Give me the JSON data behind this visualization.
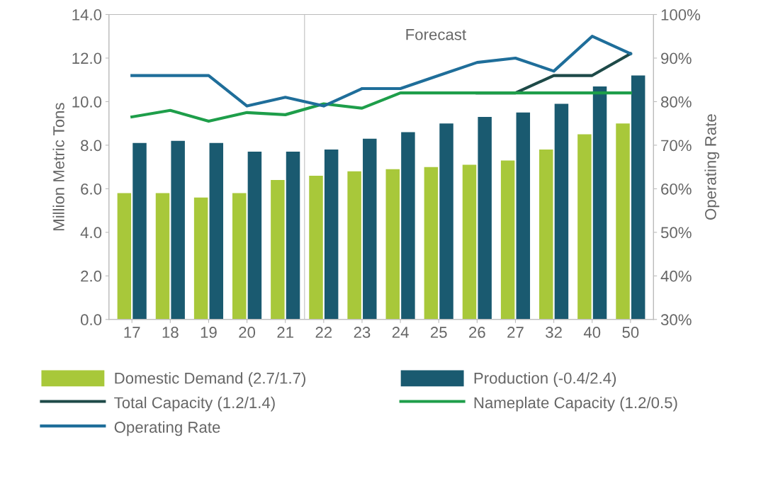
{
  "chart_data": {
    "type": "bar",
    "categories": [
      "17",
      "18",
      "19",
      "20",
      "21",
      "22",
      "23",
      "24",
      "25",
      "26",
      "27",
      "32",
      "40",
      "50"
    ],
    "ylabel": "Million Metric Tons",
    "y2label": "Operating Rate",
    "ylim": [
      0,
      14
    ],
    "yticks": [
      {
        "value": 0,
        "label": "0.0"
      },
      {
        "value": 2,
        "label": "2.0"
      },
      {
        "value": 4,
        "label": "4.0"
      },
      {
        "value": 6,
        "label": "6.0"
      },
      {
        "value": 8,
        "label": "8.0"
      },
      {
        "value": 10,
        "label": "10.0"
      },
      {
        "value": 12,
        "label": "12.0"
      },
      {
        "value": 14,
        "label": "14.0"
      }
    ],
    "y2lim": [
      30,
      100
    ],
    "y2ticks": [
      {
        "value": 30,
        "label": "30%"
      },
      {
        "value": 40,
        "label": "40%"
      },
      {
        "value": 50,
        "label": "50%"
      },
      {
        "value": 60,
        "label": "60%"
      },
      {
        "value": 70,
        "label": "70%"
      },
      {
        "value": 80,
        "label": "80%"
      },
      {
        "value": 90,
        "label": "90%"
      },
      {
        "value": 100,
        "label": "100%"
      }
    ],
    "series": [
      {
        "name": "Domestic Demand (2.7/1.7)",
        "color": "#a8c83a",
        "values": [
          5.8,
          5.8,
          5.6,
          5.8,
          6.4,
          6.6,
          6.8,
          6.9,
          7.0,
          7.1,
          7.3,
          7.8,
          8.5,
          9.0
        ]
      },
      {
        "name": "Production (-0.4/2.4)",
        "color": "#1a5a70",
        "values": [
          8.1,
          8.2,
          8.1,
          7.7,
          7.7,
          7.8,
          8.3,
          8.6,
          9.0,
          9.3,
          9.5,
          9.9,
          10.7,
          11.2
        ]
      },
      {
        "name": "Total Capacity (1.2/1.4)",
        "type": "line",
        "color": "#1e4a48",
        "values": [
          null,
          null,
          null,
          null,
          null,
          null,
          null,
          null,
          null,
          10.4,
          10.4,
          11.2,
          11.2,
          12.2
        ]
      },
      {
        "name": "Nameplate Capacity (1.2/0.5)",
        "type": "line",
        "color": "#1e9e4a",
        "values": [
          9.3,
          9.6,
          9.1,
          9.5,
          9.4,
          9.9,
          9.7,
          10.4,
          10.4,
          10.4,
          10.4,
          10.4,
          10.4,
          10.4
        ]
      },
      {
        "name": "Operating Rate",
        "type": "line",
        "axis": "y2",
        "color": "#1f6e9a",
        "values": [
          86,
          86,
          86,
          79,
          81,
          79,
          83,
          83,
          86,
          89,
          90,
          87,
          95,
          91
        ]
      }
    ],
    "annotations": [
      "Forecast"
    ],
    "legend": "bottom",
    "grid": false,
    "marker": "none",
    "line_style": "solid"
  }
}
